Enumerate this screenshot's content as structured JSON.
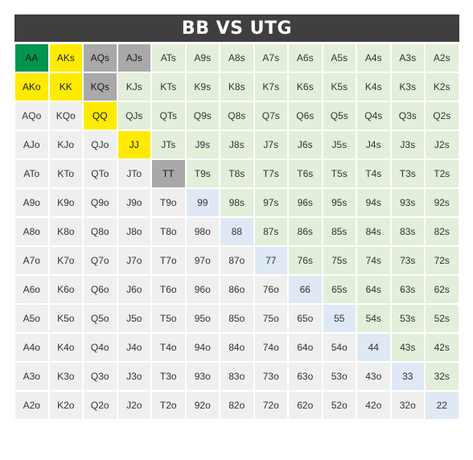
{
  "title": "BB VS UTG",
  "colors": {
    "header_bg": "#3f3f3f",
    "green": "#00944f",
    "yellow": "#ffeb00",
    "gray": "#a9a9a9",
    "offsuit": "#efefef",
    "suited": "#e3efda",
    "pair": "#dfe9f5"
  },
  "rows": [
    [
      "AA",
      "AKs",
      "AQs",
      "AJs",
      "ATs",
      "A9s",
      "A8s",
      "A7s",
      "A6s",
      "A5s",
      "A4s",
      "A3s",
      "A2s"
    ],
    [
      "AKo",
      "KK",
      "KQs",
      "KJs",
      "KTs",
      "K9s",
      "K8s",
      "K7s",
      "K6s",
      "K5s",
      "K4s",
      "K3s",
      "K2s"
    ],
    [
      "AQo",
      "KQo",
      "QQ",
      "QJs",
      "QTs",
      "Q9s",
      "Q8s",
      "Q7s",
      "Q6s",
      "Q5s",
      "Q4s",
      "Q3s",
      "Q2s"
    ],
    [
      "AJo",
      "KJo",
      "QJo",
      "JJ",
      "JTs",
      "J9s",
      "J8s",
      "J7s",
      "J6s",
      "J5s",
      "J4s",
      "J3s",
      "J2s"
    ],
    [
      "ATo",
      "KTo",
      "QTo",
      "JTo",
      "TT",
      "T9s",
      "T8s",
      "T7s",
      "T6s",
      "T5s",
      "T4s",
      "T3s",
      "T2s"
    ],
    [
      "A9o",
      "K9o",
      "Q9o",
      "J9o",
      "T9o",
      "99",
      "98s",
      "97s",
      "96s",
      "95s",
      "94s",
      "93s",
      "92s"
    ],
    [
      "A8o",
      "K8o",
      "Q8o",
      "J8o",
      "T8o",
      "98o",
      "88",
      "87s",
      "86s",
      "85s",
      "84s",
      "83s",
      "82s"
    ],
    [
      "A7o",
      "K7o",
      "Q7o",
      "J7o",
      "T7o",
      "97o",
      "87o",
      "77",
      "76s",
      "75s",
      "74s",
      "73s",
      "72s"
    ],
    [
      "A6o",
      "K6o",
      "Q6o",
      "J6o",
      "T6o",
      "96o",
      "86o",
      "76o",
      "66",
      "65s",
      "64s",
      "63s",
      "62s"
    ],
    [
      "A5o",
      "K5o",
      "Q5o",
      "J5o",
      "T5o",
      "95o",
      "85o",
      "75o",
      "65o",
      "55",
      "54s",
      "53s",
      "52s"
    ],
    [
      "A4o",
      "K4o",
      "Q4o",
      "J4o",
      "T4o",
      "94o",
      "84o",
      "74o",
      "64o",
      "54o",
      "44",
      "43s",
      "42s"
    ],
    [
      "A3o",
      "K3o",
      "Q3o",
      "J3o",
      "T3o",
      "93o",
      "83o",
      "73o",
      "63o",
      "53o",
      "43o",
      "33",
      "32s"
    ],
    [
      "A2o",
      "K2o",
      "Q2o",
      "J2o",
      "T2o",
      "92o",
      "82o",
      "72o",
      "62o",
      "52o",
      "42o",
      "32o",
      "22"
    ]
  ],
  "highlights": {
    "AA": "green",
    "AKs": "yellow",
    "AKo": "yellow",
    "KK": "yellow",
    "QQ": "yellow",
    "JJ": "yellow",
    "AQs": "gray",
    "AJs": "gray",
    "KQs": "gray",
    "TT": "gray"
  }
}
